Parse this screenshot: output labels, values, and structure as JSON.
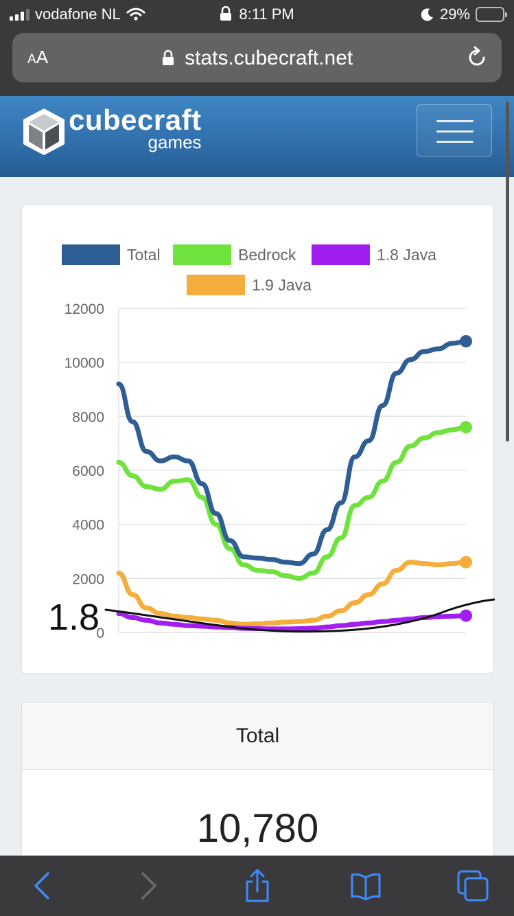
{
  "status_bar": {
    "carrier": "vodafone NL",
    "time": "8:11 PM",
    "battery": "29%"
  },
  "browser": {
    "text_size_label": "AA",
    "url": "stats.cubecraft.net"
  },
  "site": {
    "brand_line1": "cubecraft",
    "brand_line2": "games"
  },
  "colors": {
    "total": "#2f5e95",
    "bedrock": "#6fe23d",
    "java18": "#a01ef0",
    "java19": "#f5ad3c",
    "header": "#3a79b8"
  },
  "chart_data": {
    "type": "line",
    "ylim": [
      0,
      12000
    ],
    "yticks": [
      "12000",
      "10000",
      "8000",
      "6000",
      "4000",
      "2000",
      "0"
    ],
    "legend": [
      "Total",
      "Bedrock",
      "1.8 Java",
      "1.9 Java"
    ],
    "x": [
      0,
      1,
      2,
      3,
      4,
      5,
      6,
      7,
      8,
      9,
      10,
      11,
      12,
      13,
      14,
      15,
      16,
      17,
      18,
      19,
      20,
      21,
      22,
      23,
      24,
      25
    ],
    "series": [
      {
        "name": "Total",
        "values": [
          9200,
          7800,
          6700,
          6350,
          6500,
          6350,
          5500,
          4400,
          3400,
          2800,
          2750,
          2700,
          2600,
          2550,
          2900,
          3800,
          4800,
          6500,
          7100,
          8400,
          9600,
          10100,
          10400,
          10500,
          10700,
          10780
        ]
      },
      {
        "name": "Bedrock",
        "values": [
          6300,
          5800,
          5400,
          5300,
          5600,
          5650,
          5000,
          4000,
          3100,
          2500,
          2300,
          2250,
          2100,
          2000,
          2200,
          2800,
          3500,
          4700,
          5000,
          5600,
          6300,
          6900,
          7200,
          7400,
          7500,
          7600
        ]
      },
      {
        "name": "1.8 Java",
        "values": [
          700,
          550,
          450,
          350,
          300,
          250,
          230,
          200,
          180,
          150,
          140,
          130,
          130,
          140,
          160,
          200,
          250,
          300,
          350,
          400,
          450,
          500,
          550,
          580,
          600,
          620
        ]
      },
      {
        "name": "1.9 Java",
        "values": [
          2200,
          1400,
          900,
          700,
          600,
          550,
          500,
          450,
          350,
          300,
          320,
          350,
          380,
          400,
          450,
          600,
          800,
          1100,
          1400,
          1800,
          2300,
          2600,
          2550,
          2500,
          2550,
          2600
        ]
      }
    ],
    "annotation": "1.8"
  },
  "stat": {
    "title": "Total",
    "value": "10,780"
  }
}
